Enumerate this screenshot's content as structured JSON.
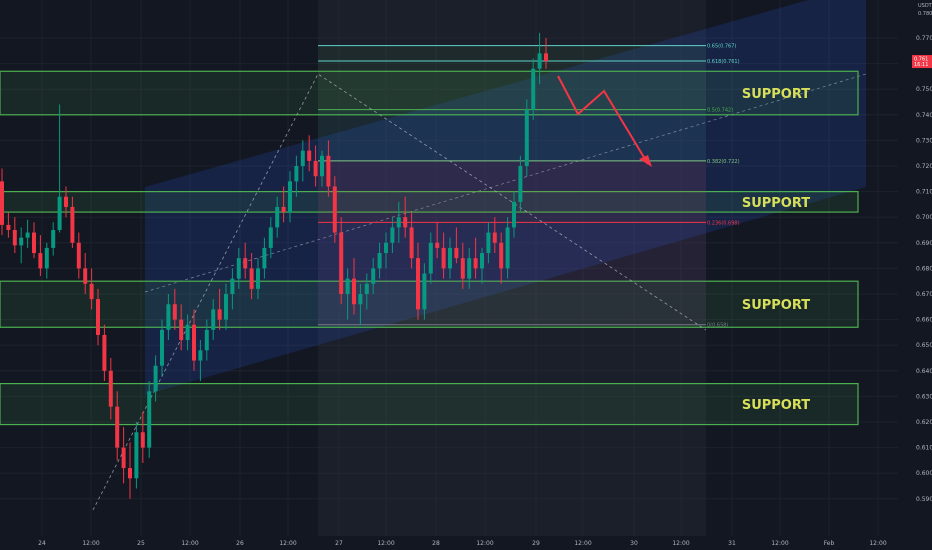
{
  "chart_data": {
    "type": "candlestick",
    "axis_unit": "USDT",
    "y_axis": {
      "range": [
        0.585,
        0.785
      ],
      "ticks": [
        "0.770",
        "0.760",
        "0.750",
        "0.740",
        "0.730",
        "0.720",
        "0.710",
        "0.700",
        "0.690",
        "0.680",
        "0.670",
        "0.660",
        "0.650",
        "0.640",
        "0.630",
        "0.620",
        "0.610",
        "0.600",
        "0.590"
      ],
      "top_partial_label": "0.780"
    },
    "x_axis": {
      "ticks": [
        "24",
        "12:00",
        "25",
        "12:00",
        "26",
        "12:00",
        "27",
        "12:00",
        "28",
        "12:00",
        "29",
        "12:00",
        "30",
        "12:00",
        "31",
        "12:00",
        "Feb",
        "12:00"
      ]
    },
    "last_price": {
      "value": "0.761",
      "countdown": "16:11",
      "color": "#f23645"
    },
    "support_zones": [
      {
        "label": "SUPPORT",
        "top": 0.757,
        "bottom": 0.74
      },
      {
        "label": "SUPPORT",
        "top": 0.71,
        "bottom": 0.702
      },
      {
        "label": "SUPPORT",
        "top": 0.675,
        "bottom": 0.657
      },
      {
        "label": "SUPPORT",
        "top": 0.635,
        "bottom": 0.619
      }
    ],
    "fib_levels": [
      {
        "label": "0.65(0.767)",
        "value": 0.767,
        "color": "#5fd4c8"
      },
      {
        "label": "0.618(0.761)",
        "value": 0.761,
        "color": "#5fd4c8"
      },
      {
        "label": "0.5(0.742)",
        "value": 0.742,
        "color": "#4caf50"
      },
      {
        "label": "0.382(0.722)",
        "value": 0.722,
        "color": "#81c784"
      },
      {
        "label": "0.236(0.698)",
        "value": 0.698,
        "color": "#f23645"
      },
      {
        "label": "0(0.658)",
        "value": 0.658,
        "color": "#787b86"
      }
    ],
    "candles": [
      [
        0,
        0.714,
        0.719,
        0.693,
        0.697
      ],
      [
        1,
        0.697,
        0.702,
        0.692,
        0.695
      ],
      [
        2,
        0.695,
        0.7,
        0.686,
        0.689
      ],
      [
        3,
        0.689,
        0.696,
        0.682,
        0.692
      ],
      [
        4,
        0.692,
        0.699,
        0.688,
        0.694
      ],
      [
        5,
        0.694,
        0.698,
        0.684,
        0.686
      ],
      [
        6,
        0.686,
        0.693,
        0.677,
        0.68
      ],
      [
        7,
        0.68,
        0.69,
        0.676,
        0.688
      ],
      [
        8,
        0.688,
        0.698,
        0.685,
        0.695
      ],
      [
        9,
        0.695,
        0.744,
        0.694,
        0.708
      ],
      [
        10,
        0.708,
        0.712,
        0.7,
        0.704
      ],
      [
        11,
        0.704,
        0.708,
        0.688,
        0.69
      ],
      [
        12,
        0.69,
        0.694,
        0.676,
        0.68
      ],
      [
        13,
        0.68,
        0.686,
        0.67,
        0.674
      ],
      [
        14,
        0.674,
        0.68,
        0.664,
        0.668
      ],
      [
        15,
        0.668,
        0.672,
        0.65,
        0.654
      ],
      [
        16,
        0.654,
        0.658,
        0.636,
        0.64
      ],
      [
        17,
        0.64,
        0.645,
        0.621,
        0.626
      ],
      [
        18,
        0.626,
        0.632,
        0.605,
        0.61
      ],
      [
        19,
        0.61,
        0.618,
        0.596,
        0.602
      ],
      [
        20,
        0.602,
        0.612,
        0.59,
        0.598
      ],
      [
        21,
        0.598,
        0.62,
        0.594,
        0.616
      ],
      [
        22,
        0.616,
        0.624,
        0.604,
        0.61
      ],
      [
        23,
        0.61,
        0.636,
        0.606,
        0.632
      ],
      [
        24,
        0.632,
        0.646,
        0.628,
        0.642
      ],
      [
        25,
        0.642,
        0.66,
        0.638,
        0.656
      ],
      [
        26,
        0.656,
        0.67,
        0.652,
        0.666
      ],
      [
        27,
        0.666,
        0.672,
        0.656,
        0.66
      ],
      [
        28,
        0.66,
        0.666,
        0.648,
        0.652
      ],
      [
        29,
        0.652,
        0.662,
        0.648,
        0.658
      ],
      [
        30,
        0.658,
        0.664,
        0.64,
        0.644
      ],
      [
        31,
        0.644,
        0.652,
        0.636,
        0.648
      ],
      [
        32,
        0.648,
        0.66,
        0.644,
        0.656
      ],
      [
        33,
        0.656,
        0.668,
        0.652,
        0.664
      ],
      [
        34,
        0.664,
        0.672,
        0.656,
        0.66
      ],
      [
        35,
        0.66,
        0.674,
        0.656,
        0.67
      ],
      [
        36,
        0.67,
        0.68,
        0.664,
        0.676
      ],
      [
        37,
        0.676,
        0.688,
        0.672,
        0.684
      ],
      [
        38,
        0.684,
        0.69,
        0.676,
        0.68
      ],
      [
        39,
        0.68,
        0.686,
        0.668,
        0.672
      ],
      [
        40,
        0.672,
        0.684,
        0.668,
        0.68
      ],
      [
        41,
        0.68,
        0.692,
        0.676,
        0.688
      ],
      [
        42,
        0.688,
        0.7,
        0.684,
        0.696
      ],
      [
        43,
        0.696,
        0.708,
        0.692,
        0.704
      ],
      [
        44,
        0.704,
        0.712,
        0.698,
        0.702
      ],
      [
        45,
        0.702,
        0.718,
        0.698,
        0.714
      ],
      [
        46,
        0.714,
        0.724,
        0.708,
        0.72
      ],
      [
        47,
        0.72,
        0.73,
        0.714,
        0.726
      ],
      [
        48,
        0.726,
        0.732,
        0.718,
        0.722
      ],
      [
        49,
        0.722,
        0.728,
        0.712,
        0.716
      ],
      [
        50,
        0.716,
        0.726,
        0.712,
        0.724
      ],
      [
        51,
        0.724,
        0.73,
        0.708,
        0.712
      ],
      [
        52,
        0.712,
        0.716,
        0.69,
        0.694
      ],
      [
        53,
        0.694,
        0.7,
        0.666,
        0.67
      ],
      [
        54,
        0.67,
        0.68,
        0.66,
        0.676
      ],
      [
        55,
        0.676,
        0.684,
        0.662,
        0.666
      ],
      [
        56,
        0.666,
        0.674,
        0.658,
        0.67
      ],
      [
        57,
        0.67,
        0.678,
        0.664,
        0.674
      ],
      [
        58,
        0.674,
        0.684,
        0.67,
        0.68
      ],
      [
        59,
        0.68,
        0.69,
        0.676,
        0.686
      ],
      [
        60,
        0.686,
        0.694,
        0.68,
        0.69
      ],
      [
        61,
        0.69,
        0.7,
        0.686,
        0.696
      ],
      [
        62,
        0.696,
        0.706,
        0.69,
        0.7
      ],
      [
        63,
        0.7,
        0.708,
        0.692,
        0.696
      ],
      [
        64,
        0.696,
        0.702,
        0.68,
        0.684
      ],
      [
        65,
        0.684,
        0.69,
        0.66,
        0.664
      ],
      [
        66,
        0.664,
        0.682,
        0.66,
        0.678
      ],
      [
        67,
        0.678,
        0.694,
        0.674,
        0.69
      ],
      [
        68,
        0.69,
        0.698,
        0.684,
        0.688
      ],
      [
        69,
        0.688,
        0.694,
        0.676,
        0.68
      ],
      [
        70,
        0.68,
        0.692,
        0.676,
        0.688
      ],
      [
        71,
        0.688,
        0.696,
        0.682,
        0.684
      ],
      [
        72,
        0.684,
        0.69,
        0.672,
        0.676
      ],
      [
        73,
        0.676,
        0.688,
        0.672,
        0.684
      ],
      [
        74,
        0.684,
        0.692,
        0.676,
        0.68
      ],
      [
        75,
        0.68,
        0.688,
        0.674,
        0.686
      ],
      [
        76,
        0.686,
        0.698,
        0.682,
        0.694
      ],
      [
        77,
        0.694,
        0.7,
        0.686,
        0.69
      ],
      [
        78,
        0.69,
        0.694,
        0.674,
        0.68
      ],
      [
        79,
        0.68,
        0.7,
        0.676,
        0.696
      ],
      [
        80,
        0.696,
        0.71,
        0.692,
        0.706
      ],
      [
        81,
        0.706,
        0.724,
        0.702,
        0.72
      ],
      [
        82,
        0.72,
        0.746,
        0.716,
        0.742
      ],
      [
        83,
        0.742,
        0.762,
        0.738,
        0.758
      ],
      [
        84,
        0.758,
        0.772,
        0.752,
        0.764
      ],
      [
        85,
        0.764,
        0.77,
        0.758,
        0.761
      ]
    ]
  }
}
